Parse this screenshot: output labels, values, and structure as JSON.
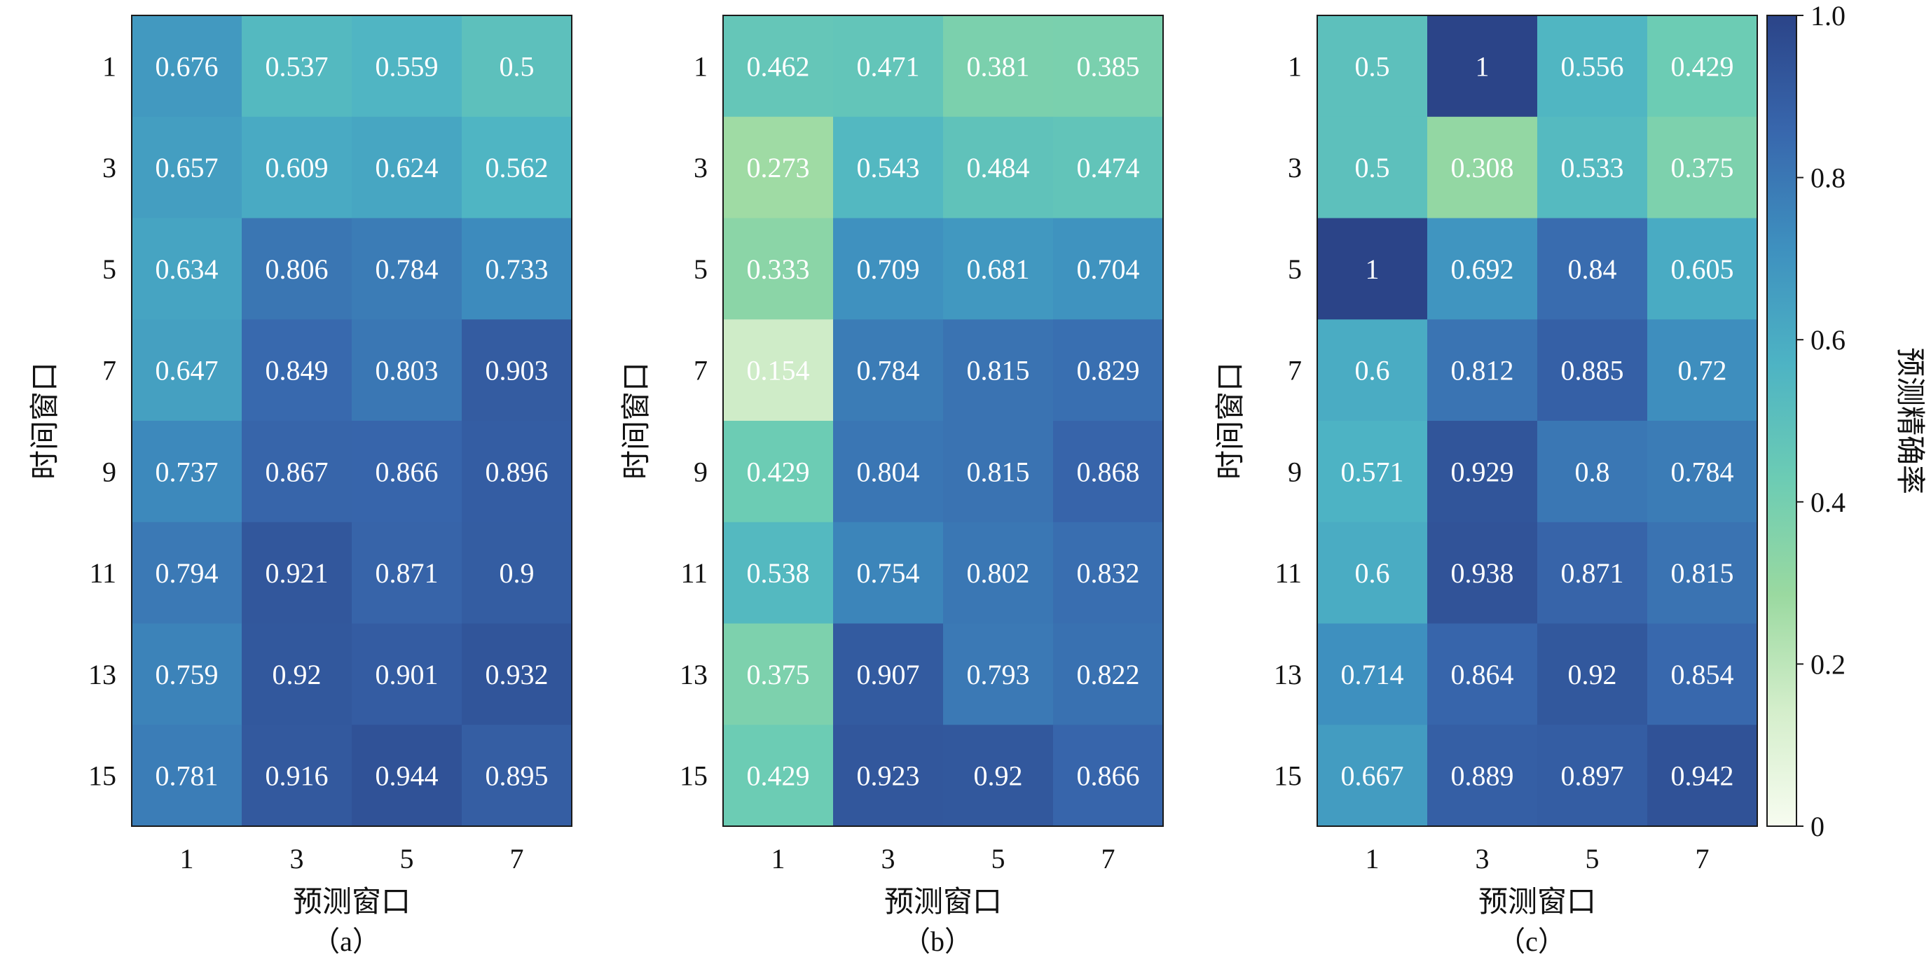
{
  "chart_data": [
    {
      "type": "heatmap",
      "panel_label": "（a）",
      "xlabel": "预测窗口",
      "ylabel": "时间窗口",
      "x_categories": [
        "1",
        "3",
        "5",
        "7"
      ],
      "y_categories": [
        "1",
        "3",
        "5",
        "7",
        "9",
        "11",
        "13",
        "15"
      ],
      "values": [
        [
          0.676,
          0.537,
          0.559,
          0.5
        ],
        [
          0.657,
          0.609,
          0.624,
          0.562
        ],
        [
          0.634,
          0.806,
          0.784,
          0.733
        ],
        [
          0.647,
          0.849,
          0.803,
          0.903
        ],
        [
          0.737,
          0.867,
          0.866,
          0.896
        ],
        [
          0.794,
          0.921,
          0.871,
          0.9
        ],
        [
          0.759,
          0.92,
          0.901,
          0.932
        ],
        [
          0.781,
          0.916,
          0.944,
          0.895
        ]
      ],
      "value_range": [
        0,
        1
      ]
    },
    {
      "type": "heatmap",
      "panel_label": "（b）",
      "xlabel": "预测窗口",
      "ylabel": "时间窗口",
      "x_categories": [
        "1",
        "3",
        "5",
        "7"
      ],
      "y_categories": [
        "1",
        "3",
        "5",
        "7",
        "9",
        "11",
        "13",
        "15"
      ],
      "values": [
        [
          0.462,
          0.471,
          0.381,
          0.385
        ],
        [
          0.273,
          0.543,
          0.484,
          0.474
        ],
        [
          0.333,
          0.709,
          0.681,
          0.704
        ],
        [
          0.154,
          0.784,
          0.815,
          0.829
        ],
        [
          0.429,
          0.804,
          0.815,
          0.868
        ],
        [
          0.538,
          0.754,
          0.802,
          0.832
        ],
        [
          0.375,
          0.907,
          0.793,
          0.822
        ],
        [
          0.429,
          0.923,
          0.92,
          0.866
        ]
      ],
      "value_range": [
        0,
        1
      ]
    },
    {
      "type": "heatmap",
      "panel_label": "（c）",
      "xlabel": "预测窗口",
      "ylabel": "时间窗口",
      "x_categories": [
        "1",
        "3",
        "5",
        "7"
      ],
      "y_categories": [
        "1",
        "3",
        "5",
        "7",
        "9",
        "11",
        "13",
        "15"
      ],
      "values": [
        [
          0.5,
          1.0,
          0.556,
          0.429
        ],
        [
          0.5,
          0.308,
          0.533,
          0.375
        ],
        [
          1.0,
          0.692,
          0.84,
          0.605
        ],
        [
          0.6,
          0.812,
          0.885,
          0.72
        ],
        [
          0.571,
          0.929,
          0.8,
          0.784
        ],
        [
          0.6,
          0.938,
          0.871,
          0.815
        ],
        [
          0.714,
          0.864,
          0.92,
          0.854
        ],
        [
          0.667,
          0.889,
          0.897,
          0.942
        ]
      ],
      "value_range": [
        0,
        1
      ]
    }
  ],
  "colorbar": {
    "label": "预测精确率",
    "range": [
      0,
      1
    ],
    "ticks": [
      0,
      0.2,
      0.4,
      0.6,
      0.8,
      1.0
    ],
    "tick_labels": [
      "0",
      "0.2",
      "0.4",
      "0.6",
      "0.8",
      "1.0"
    ],
    "colormap": "YlGnBu",
    "stops": [
      "#f7fcf0",
      "#d4eecb",
      "#9ad9a0",
      "#6cccb4",
      "#4db3c4",
      "#3e90bf",
      "#3867ad",
      "#2b4488"
    ]
  },
  "colors": {
    "frame": "#1a1a1a",
    "cell_text": "#ffffff",
    "tick_text": "#111111"
  }
}
